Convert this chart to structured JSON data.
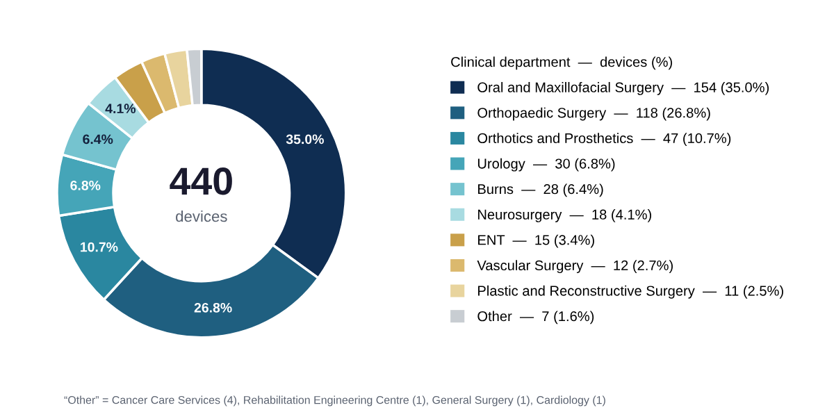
{
  "chart_data": {
    "type": "donut",
    "categories": [
      "Oral and Maxillofacial Surgery  —  154 (35.0%)",
      "Orthopaedic Surgery  —  118 (26.8%)",
      "Orthotics and Prosthetics  —  47 (10.7%)",
      "Urology  —  30 (6.8%)",
      "Burns  —  28 (6.4%)",
      "Neurosurgery  —  18 (4.1%)",
      "ENT  —  15 (3.4%)",
      "Vascular Surgery  —  12 (2.7%)",
      "Plastic and Reconstructive Surgery  —  11 (2.5%)",
      "Other  —  7 (1.6%)"
    ],
    "values": [
      35.0,
      26.8,
      10.7,
      6.8,
      6.4,
      4.1,
      3.4,
      2.7,
      2.5,
      1.6
    ],
    "colors": [
      "#0f2d52",
      "#1f5f80",
      "#2a87a0",
      "#45a5b8",
      "#75c3cf",
      "#a8dbe1",
      "#c9a04a",
      "#dbb96e",
      "#e8d49e",
      "#c8cdd2"
    ],
    "value_labels": [
      "35.0%",
      "26.8%",
      "10.7%",
      "6.8%",
      "6.4%",
      "4.1%",
      null,
      null,
      null,
      null
    ],
    "legend_title": "Clinical department  —  devices (%)",
    "legend": "right",
    "annotations": [
      "440",
      "devices",
      "“Other” = Cancer Care Services (4), Rehabilitation Engineering Centre (1), General Surgery (1), Cardiology (1)"
    ]
  }
}
